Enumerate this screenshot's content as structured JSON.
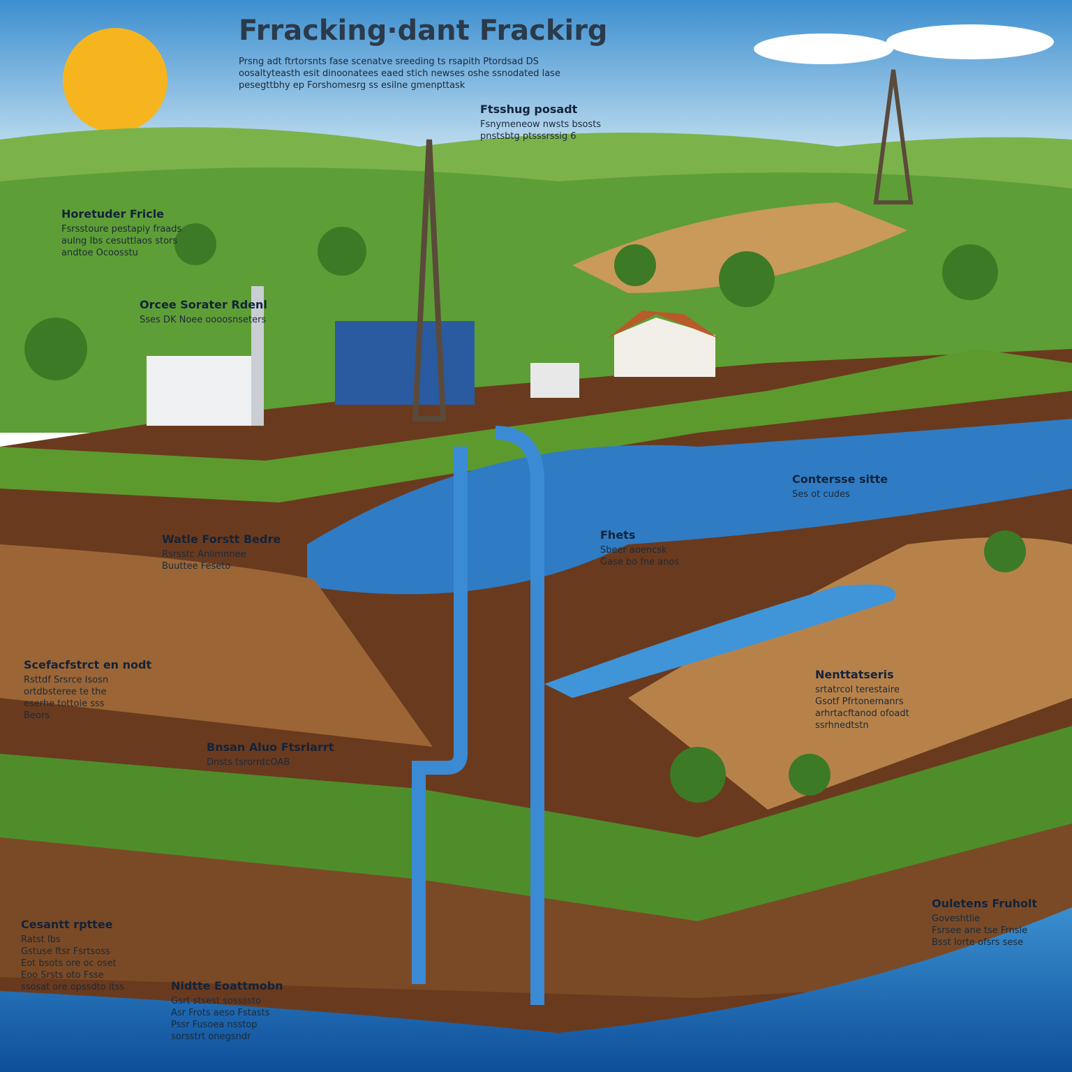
{
  "title": "Frracking·dant Frackirg",
  "labels": [
    {
      "heading": null,
      "lines": [
        "Prsng adt ftrtorsnts fase scenatve sreeding ts rsapith Ptordsad DS",
        "oosaltyteasth esit dinoonatees eaed stich newses oshe ssnodated lase",
        "pesegttbhy ep Forshomesrg ss esilne gmenpttask"
      ]
    },
    {
      "heading": "Ftsshug posadt",
      "lines": [
        "Fsnymeneow nwsts bsosts",
        "pnstsbtg ptsssrssig 6"
      ]
    },
    {
      "heading": "Horetuder Fricle",
      "lines": [
        "Fsrsstoure pestapiy fraads",
        "aulng Ibs cesuttlaos stors",
        "andtoe Ocoosstu"
      ]
    },
    {
      "heading": "Orcee Sorater Rdenl",
      "lines": [
        "Sses DK Noee oooosnseters"
      ]
    },
    {
      "heading": "Watle Forstt Bedre",
      "lines": [
        "Rsrsstc Anlimnnee",
        "Buuttee Feseto"
      ]
    },
    {
      "heading": "Scefacfstrct en nodt",
      "lines": [
        "Rsttdf Srsrce Isosn",
        "ortdbsteree te the",
        "eserhe tottoie sss",
        "Beors"
      ]
    },
    {
      "heading": "Contersse sitte",
      "lines": [
        "Ses ot cudes"
      ]
    },
    {
      "heading": "Nenttatseris",
      "lines": [
        "srtatrcol terestaire",
        "Gsotf Pfrtonemanrs",
        "arhrtacftanod ofoadt",
        "ssrhnedtstn"
      ]
    },
    {
      "heading": "Ouletens Fruholt",
      "lines": [
        "Goveshtlie",
        "Fsrsee ane tse Frnsle",
        "Bsst Iorte ofsrs sese"
      ]
    },
    {
      "heading": "Cesantt rpttee",
      "lines": [
        "Ratst Ibs",
        "Gstuse ftsr Fsrtsoss",
        "Eot bsots ore oc oset",
        "Eoo Srsts oto Fsse",
        "ssosat ore opssdto itss"
      ]
    },
    {
      "heading": "Nidtte Eoattmobn",
      "lines": [
        "Gsrt stsest sossssto",
        "Asr Frots aeso Fstasts",
        "Pssr Fusoea nsstop",
        "sorsstrt onegsndr"
      ]
    },
    {
      "heading": "Bnsan Aluo Ftsrlarrt",
      "lines": [
        "Dnsts tsrorntcOAB"
      ]
    },
    {
      "heading": "Fhets",
      "lines": [
        "Sbeer aoencsk",
        "Gase bo fne anos"
      ]
    }
  ]
}
